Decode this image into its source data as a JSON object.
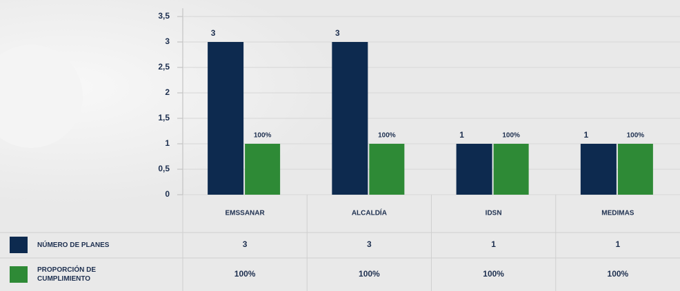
{
  "chart_data": {
    "type": "bar",
    "categories": [
      "EMSSANAR",
      "ALCALDÍA",
      "IDSN",
      "MEDIMAS"
    ],
    "series": [
      {
        "name": "NÚMERO DE PLANES",
        "color": "#0d2a4f",
        "values": [
          3,
          3,
          1,
          1
        ]
      },
      {
        "name": "PROPORCIÓN DE CUMPLIMIENTO",
        "color": "#2e8a36",
        "values": [
          1,
          1,
          1,
          1
        ],
        "value_labels": [
          "100%",
          "100%",
          "100%",
          "100%"
        ]
      }
    ],
    "ylim": [
      0,
      3.5
    ],
    "yticks": [
      0,
      {
        "value": 0.5,
        "label": "0,5"
      },
      1,
      {
        "value": 1.5,
        "label": "1,5"
      },
      2,
      {
        "value": 2.5,
        "label": "2,5"
      },
      3,
      {
        "value": 3.5,
        "label": "3,5"
      }
    ],
    "grid": true
  }
}
